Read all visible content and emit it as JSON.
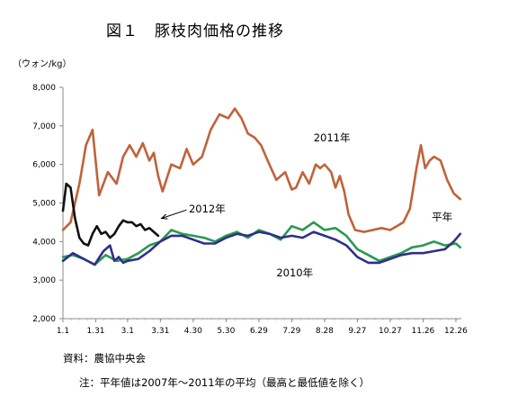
{
  "title": "図１　豚枝肉価格の推移",
  "unit_label": "（ウォン/kg）",
  "notes": {
    "source": "資料：農協中央会",
    "remark": "注：平年値は2007年～2011年の平均（最高と最低値を除く）"
  },
  "chart_data": {
    "type": "line",
    "title": "図１　豚枝肉価格の推移",
    "ylabel": "（ウォン/kg）",
    "xlabel": "",
    "ylim": [
      2000,
      8000
    ],
    "yticks": [
      "2,000",
      "3,000",
      "4,000",
      "5,000",
      "6,000",
      "7,000",
      "8,000"
    ],
    "xlim": [
      1,
      365
    ],
    "xticks": [
      {
        "label": "1.1",
        "day": 1
      },
      {
        "label": "1.31",
        "day": 31
      },
      {
        "label": "3.1",
        "day": 60
      },
      {
        "label": "3.31",
        "day": 90
      },
      {
        "label": "4.30",
        "day": 120
      },
      {
        "label": "5.30",
        "day": 150
      },
      {
        "label": "6.29",
        "day": 180
      },
      {
        "label": "7.29",
        "day": 210
      },
      {
        "label": "8.28",
        "day": 240
      },
      {
        "label": "9.27",
        "day": 270
      },
      {
        "label": "10.27",
        "day": 300
      },
      {
        "label": "11.26",
        "day": 330
      },
      {
        "label": "12.26",
        "day": 360
      }
    ],
    "grid": false,
    "legend": "inline labels",
    "series": [
      {
        "name": "2011年",
        "color": "#c0623a",
        "x": [
          1,
          8,
          16,
          22,
          28,
          34,
          42,
          50,
          56,
          62,
          68,
          74,
          80,
          84,
          88,
          92,
          100,
          108,
          114,
          120,
          128,
          136,
          144,
          152,
          158,
          164,
          170,
          176,
          182,
          188,
          196,
          204,
          210,
          214,
          220,
          226,
          232,
          236,
          240,
          246,
          250,
          254,
          258,
          262,
          268,
          276,
          284,
          292,
          300,
          306,
          312,
          318,
          324,
          328,
          332,
          336,
          340,
          346,
          352,
          358,
          364
        ],
        "values": [
          4300,
          4500,
          5500,
          6500,
          6900,
          5200,
          5800,
          5500,
          6200,
          6500,
          6200,
          6550,
          6100,
          6300,
          5700,
          5300,
          6000,
          5900,
          6400,
          6000,
          6200,
          6900,
          7300,
          7200,
          7450,
          7200,
          6800,
          6700,
          6500,
          6100,
          5600,
          5800,
          5350,
          5400,
          5800,
          5500,
          6000,
          5900,
          6000,
          5800,
          5400,
          5700,
          5300,
          4700,
          4300,
          4250,
          4300,
          4350,
          4300,
          4400,
          4500,
          4850,
          5900,
          6500,
          5900,
          6100,
          6200,
          6100,
          5600,
          5250,
          5100
        ]
      },
      {
        "name": "平年",
        "color": "#2a9a50",
        "x": [
          1,
          10,
          20,
          30,
          40,
          50,
          60,
          70,
          80,
          90,
          100,
          110,
          120,
          130,
          140,
          150,
          160,
          170,
          180,
          190,
          200,
          210,
          220,
          230,
          240,
          250,
          260,
          270,
          280,
          290,
          300,
          310,
          320,
          330,
          340,
          350,
          360,
          364
        ],
        "values": [
          3600,
          3650,
          3550,
          3400,
          3650,
          3500,
          3550,
          3700,
          3900,
          4000,
          4300,
          4200,
          4150,
          4100,
          4000,
          4150,
          4250,
          4100,
          4300,
          4200,
          4050,
          4400,
          4300,
          4500,
          4300,
          4350,
          4150,
          3800,
          3650,
          3500,
          3600,
          3700,
          3850,
          3900,
          4000,
          3900,
          3950,
          3850
        ]
      },
      {
        "name": "2010年",
        "color": "#2f2f8a",
        "x": [
          1,
          10,
          20,
          30,
          38,
          44,
          48,
          52,
          56,
          60,
          70,
          80,
          90,
          100,
          110,
          120,
          130,
          140,
          150,
          160,
          170,
          180,
          190,
          200,
          210,
          220,
          230,
          240,
          250,
          260,
          270,
          280,
          290,
          300,
          310,
          320,
          330,
          340,
          350,
          358,
          364
        ],
        "values": [
          3500,
          3700,
          3550,
          3400,
          3750,
          3900,
          3500,
          3600,
          3450,
          3500,
          3550,
          3750,
          4000,
          4150,
          4150,
          4050,
          3950,
          3950,
          4100,
          4200,
          4150,
          4250,
          4200,
          4100,
          4150,
          4100,
          4250,
          4150,
          4050,
          3900,
          3600,
          3450,
          3450,
          3550,
          3650,
          3700,
          3700,
          3750,
          3800,
          4000,
          4200
        ]
      },
      {
        "name": "2012年",
        "color": "#111111",
        "x": [
          1,
          4,
          8,
          12,
          16,
          20,
          24,
          28,
          32,
          36,
          40,
          44,
          48,
          52,
          56,
          60,
          64,
          68,
          72,
          76,
          80,
          84,
          88
        ],
        "values": [
          4800,
          5500,
          5400,
          4600,
          4100,
          3950,
          3900,
          4200,
          4400,
          4200,
          4250,
          4100,
          4200,
          4400,
          4550,
          4500,
          4500,
          4400,
          4450,
          4300,
          4350,
          4250,
          4150
        ]
      }
    ],
    "annotations": [
      {
        "text": "2011年",
        "x": 230,
        "y": 6600
      },
      {
        "text": "2012年",
        "x": 116,
        "y": 4750
      },
      {
        "text": "平年",
        "x": 338,
        "y": 4550
      },
      {
        "text": "2010年",
        "x": 196,
        "y": 3100
      }
    ]
  }
}
